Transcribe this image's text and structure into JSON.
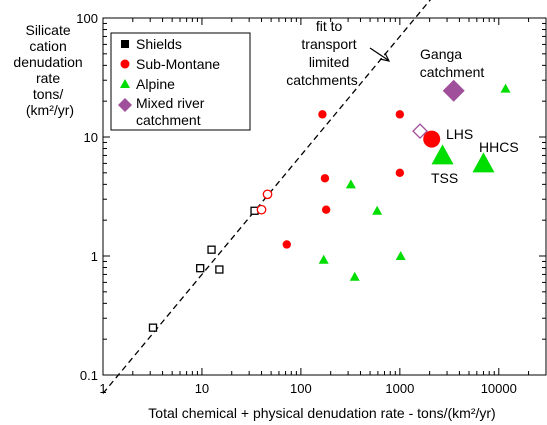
{
  "chart_data": {
    "type": "scatter",
    "x_scale": "log",
    "y_scale": "log",
    "xlim": [
      1,
      30000
    ],
    "ylim": [
      0.1,
      100
    ],
    "xlabel": "Total chemical + physical denudation rate - tons/(km²/yr)",
    "ylabel_lines": [
      "Silicate",
      "cation",
      "denudation",
      "rate",
      "tons/",
      "(km²/yr)"
    ],
    "x_ticks": [
      {
        "value": 1,
        "label": "1"
      },
      {
        "value": 10,
        "label": "10"
      },
      {
        "value": 100,
        "label": "100"
      },
      {
        "value": 1000,
        "label": "1000"
      },
      {
        "value": 10000,
        "label": "10000"
      }
    ],
    "y_ticks": [
      {
        "value": 0.1,
        "label": "0.1"
      },
      {
        "value": 1,
        "label": "1"
      },
      {
        "value": 10,
        "label": "10"
      },
      {
        "value": 100,
        "label": "100"
      }
    ],
    "legend_position": "top-left",
    "legend": [
      {
        "label": "Shields",
        "marker": "square",
        "color": "#000000"
      },
      {
        "label": "Sub-Montane",
        "marker": "circle",
        "color": "#ff0000"
      },
      {
        "label": "Alpine",
        "marker": "triangle",
        "color": "#00dd00"
      },
      {
        "label": "Mixed river",
        "label2": "catchment",
        "marker": "diamond",
        "color": "#a0509a"
      }
    ],
    "fit_line": {
      "style": "dashed",
      "points": [
        [
          1,
          0.07
        ],
        [
          30000,
          2100
        ]
      ]
    },
    "series": [
      {
        "name": "Shields",
        "marker": "square-open",
        "color": "#000000",
        "points": [
          [
            3.2,
            0.25
          ],
          [
            9.6,
            0.79
          ],
          [
            12.5,
            1.13
          ],
          [
            15,
            0.77
          ],
          [
            34,
            2.4
          ]
        ]
      },
      {
        "name": "Sub-Montane",
        "marker": "circle-filled",
        "color": "#ff0000",
        "points": [
          [
            72,
            1.25
          ],
          [
            165,
            15.5
          ],
          [
            175,
            4.5
          ],
          [
            180,
            2.45
          ],
          [
            1000,
            15.5
          ],
          [
            1000,
            5.0
          ]
        ]
      },
      {
        "name": "Sub-Montane (open)",
        "marker": "circle-open",
        "color": "#ff0000",
        "points": [
          [
            40,
            2.45
          ],
          [
            46,
            3.3
          ]
        ]
      },
      {
        "name": "Alpine",
        "marker": "triangle-filled",
        "color": "#00dd00",
        "points": [
          [
            170,
            0.93
          ],
          [
            320,
            4.0
          ],
          [
            350,
            0.67
          ],
          [
            590,
            2.4
          ],
          [
            1020,
            1.0
          ],
          [
            11700,
            25.5
          ]
        ]
      },
      {
        "name": "Mixed river catchment",
        "marker": "diamond-open",
        "color": "#a0509a",
        "points": [
          [
            1600,
            11.2
          ]
        ]
      }
    ],
    "labeled_points": [
      {
        "label": "LHS",
        "x": 2100,
        "y": 9.6,
        "marker": "circle-filled",
        "color": "#ff0000",
        "big": true
      },
      {
        "label": "TSS",
        "x": 2700,
        "y": 7.0,
        "marker": "triangle-filled",
        "color": "#00dd00",
        "big": true
      },
      {
        "label": "HHCS",
        "x": 7000,
        "y": 6.0,
        "marker": "triangle-filled",
        "color": "#00dd00",
        "big": true
      },
      {
        "label": "Ganga catchment",
        "x": 3500,
        "y": 24.5,
        "marker": "diamond-filled",
        "color": "#a0509a",
        "big": true
      }
    ],
    "annotations": {
      "fit_label": [
        "fit to",
        "transport",
        "limited",
        "catchments"
      ],
      "ganga_label": [
        "Ganga",
        "catchment"
      ],
      "lhs": "LHS",
      "tss": "TSS",
      "hhcs": "HHCS"
    }
  }
}
